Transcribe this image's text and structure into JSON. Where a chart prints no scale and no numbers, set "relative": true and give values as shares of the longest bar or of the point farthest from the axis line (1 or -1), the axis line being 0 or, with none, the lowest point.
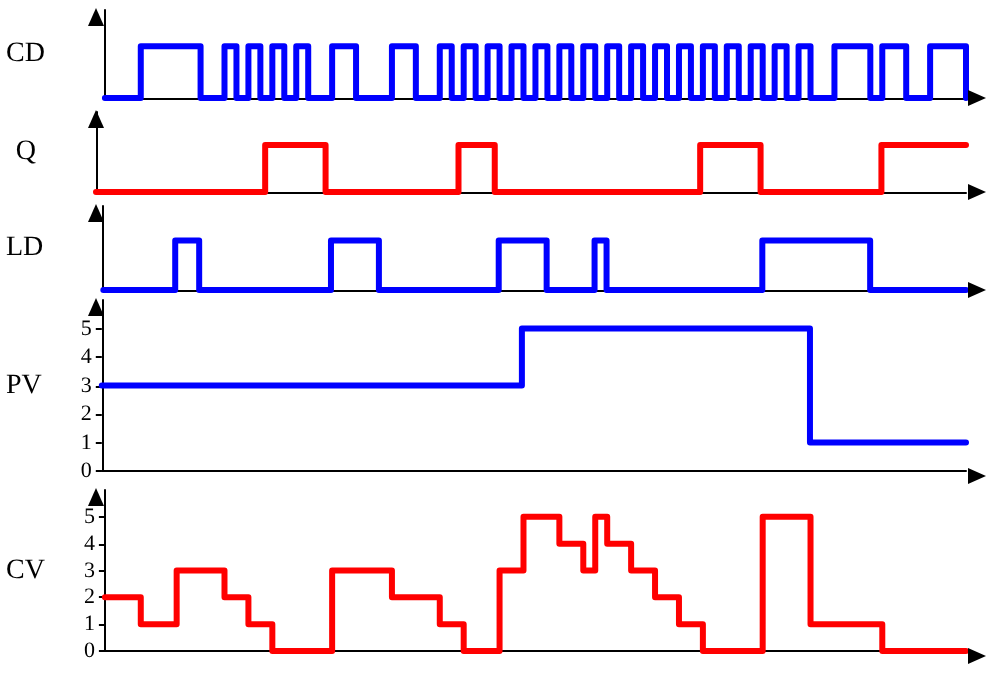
{
  "chart_data": [
    {
      "type": "step",
      "ylabel": "CD",
      "color": "#0000ff",
      "relative": true,
      "tick_labels": false,
      "categories": [
        null,
        null,
        null,
        null,
        null,
        null,
        null,
        null,
        null,
        null,
        null,
        null,
        null,
        null,
        null,
        null,
        null,
        null,
        null,
        null,
        null,
        null,
        null,
        null,
        null,
        null,
        null,
        null,
        null,
        null,
        null,
        null,
        null,
        null,
        null,
        null,
        null,
        null,
        null,
        null,
        null,
        null,
        null,
        null,
        null,
        null,
        null,
        null,
        null,
        null,
        null,
        null,
        null,
        null,
        null,
        null,
        null,
        null,
        null,
        null,
        null,
        null,
        null,
        null,
        null,
        null,
        null,
        null,
        null,
        null,
        null,
        null,
        null
      ],
      "values": [
        0,
        0,
        0,
        1,
        1,
        1,
        1,
        1,
        0,
        0,
        1,
        0,
        1,
        0,
        1,
        0,
        1,
        0,
        0,
        1,
        1,
        0,
        0,
        0,
        1,
        1,
        0,
        0,
        1,
        0,
        1,
        0,
        1,
        0,
        1,
        0,
        1,
        0,
        1,
        0,
        1,
        0,
        1,
        0,
        1,
        0,
        1,
        0,
        1,
        0,
        1,
        0,
        1,
        0,
        1,
        0,
        1,
        0,
        1,
        0,
        0,
        1,
        1,
        1,
        0,
        1,
        1,
        0,
        0,
        1,
        1,
        1,
        0
      ]
    },
    {
      "type": "step",
      "ylabel": "Q",
      "color": "#ff0000",
      "relative": true,
      "tick_labels": false,
      "categories": [
        null,
        null,
        null,
        null,
        null,
        null,
        null,
        null,
        null,
        null,
        null,
        null,
        null,
        null,
        null,
        null,
        null,
        null,
        null,
        null,
        null,
        null,
        null,
        null,
        null,
        null,
        null,
        null,
        null,
        null,
        null,
        null,
        null,
        null,
        null,
        null,
        null,
        null,
        null,
        null,
        null,
        null,
        null,
        null,
        null,
        null,
        null,
        null,
        null,
        null,
        null,
        null,
        null,
        null,
        null,
        null,
        null,
        null,
        null,
        null,
        null,
        null,
        null,
        null,
        null,
        null,
        null,
        null,
        null,
        null,
        null,
        null,
        null
      ],
      "values": [
        0,
        0,
        0,
        0,
        0,
        0,
        0,
        0,
        0,
        0,
        0,
        0,
        0,
        0,
        1,
        1,
        1,
        1,
        1,
        0,
        0,
        0,
        0,
        0,
        0,
        0,
        0,
        0,
        0,
        0,
        1,
        1,
        1,
        0,
        0,
        0,
        0,
        0,
        0,
        0,
        0,
        0,
        0,
        0,
        0,
        0,
        0,
        0,
        0,
        0,
        1,
        1,
        1,
        1,
        1,
        0,
        0,
        0,
        0,
        0,
        0,
        0,
        0,
        0,
        0,
        1,
        1,
        1,
        1,
        1,
        1,
        1,
        1
      ]
    },
    {
      "type": "step",
      "ylabel": "LD",
      "color": "#0000ff",
      "relative": true,
      "tick_labels": false,
      "categories": [
        null,
        null,
        null,
        null,
        null,
        null,
        null,
        null,
        null,
        null,
        null,
        null,
        null,
        null,
        null,
        null,
        null,
        null,
        null,
        null,
        null,
        null,
        null,
        null,
        null,
        null,
        null,
        null,
        null,
        null,
        null,
        null,
        null,
        null,
        null,
        null,
        null,
        null,
        null,
        null,
        null,
        null,
        null,
        null,
        null,
        null,
        null,
        null,
        null,
        null,
        null,
        null,
        null,
        null,
        null,
        null,
        null,
        null,
        null,
        null,
        null,
        null,
        null,
        null,
        null,
        null,
        null,
        null,
        null,
        null,
        null,
        null,
        null
      ],
      "values": [
        0,
        0,
        0,
        0,
        0,
        0,
        1,
        1,
        0,
        0,
        0,
        0,
        0,
        0,
        0,
        0,
        0,
        0,
        0,
        1,
        1,
        1,
        1,
        0,
        0,
        0,
        0,
        0,
        0,
        0,
        0,
        0,
        0,
        1,
        1,
        1,
        1,
        0,
        0,
        0,
        0,
        1,
        0,
        0,
        0,
        0,
        0,
        0,
        0,
        0,
        0,
        0,
        0,
        0,
        0,
        1,
        1,
        1,
        1,
        1,
        1,
        1,
        1,
        1,
        0,
        0,
        0,
        0,
        0,
        0,
        0,
        0,
        0
      ]
    },
    {
      "type": "step",
      "ylabel": "PV",
      "color": "#0000ff",
      "tick_labels": "y",
      "ylim": [
        0,
        6
      ],
      "yticks": [
        0,
        1,
        2,
        3,
        4,
        5
      ],
      "categories": [
        null,
        null,
        null,
        null,
        null,
        null,
        null,
        null,
        null,
        null,
        null,
        null,
        null,
        null,
        null,
        null,
        null,
        null,
        null,
        null,
        null,
        null,
        null,
        null,
        null,
        null,
        null,
        null,
        null,
        null,
        null,
        null,
        null,
        null,
        null,
        null,
        null,
        null,
        null,
        null,
        null,
        null,
        null,
        null,
        null,
        null,
        null,
        null,
        null,
        null,
        null,
        null,
        null,
        null,
        null,
        null,
        null,
        null,
        null,
        null,
        null,
        null,
        null,
        null,
        null,
        null,
        null,
        null,
        null,
        null,
        null,
        null,
        null
      ],
      "values": [
        3,
        3,
        3,
        3,
        3,
        3,
        3,
        3,
        3,
        3,
        3,
        3,
        3,
        3,
        3,
        3,
        3,
        3,
        3,
        3,
        3,
        3,
        3,
        3,
        3,
        3,
        3,
        3,
        3,
        3,
        3,
        3,
        3,
        3,
        3,
        5,
        5,
        5,
        5,
        5,
        5,
        5,
        5,
        5,
        5,
        5,
        5,
        5,
        5,
        5,
        5,
        5,
        5,
        5,
        5,
        5,
        5,
        5,
        5,
        1,
        1,
        1,
        1,
        1,
        1,
        1,
        1,
        1,
        1,
        1,
        1,
        1,
        1
      ]
    },
    {
      "type": "step",
      "ylabel": "CV",
      "color": "#ff0000",
      "tick_labels": "y",
      "ylim": [
        0,
        6
      ],
      "yticks": [
        0,
        1,
        2,
        3,
        4,
        5
      ],
      "categories": [
        null,
        null,
        null,
        null,
        null,
        null,
        null,
        null,
        null,
        null,
        null,
        null,
        null,
        null,
        null,
        null,
        null,
        null,
        null,
        null,
        null,
        null,
        null,
        null,
        null,
        null,
        null,
        null,
        null,
        null,
        null,
        null,
        null,
        null,
        null,
        null,
        null,
        null,
        null,
        null,
        null,
        null,
        null,
        null,
        null,
        null,
        null,
        null,
        null,
        null,
        null,
        null,
        null,
        null,
        null,
        null,
        null,
        null,
        null,
        null,
        null,
        null,
        null,
        null,
        null,
        null,
        null,
        null,
        null,
        null,
        null,
        null,
        null
      ],
      "values": [
        2,
        2,
        2,
        1,
        1,
        1,
        3,
        3,
        3,
        3,
        2,
        2,
        1,
        1,
        0,
        0,
        0,
        0,
        0,
        3,
        3,
        3,
        3,
        3,
        2,
        2,
        2,
        2,
        1,
        1,
        0,
        0,
        0,
        3,
        3,
        5,
        5,
        5,
        4,
        4,
        3,
        5,
        4,
        4,
        3,
        3,
        2,
        2,
        1,
        1,
        0,
        0,
        0,
        0,
        0,
        5,
        5,
        5,
        5,
        1,
        1,
        1,
        1,
        1,
        1,
        0,
        0,
        0,
        0,
        0,
        0,
        0,
        0
      ]
    }
  ]
}
